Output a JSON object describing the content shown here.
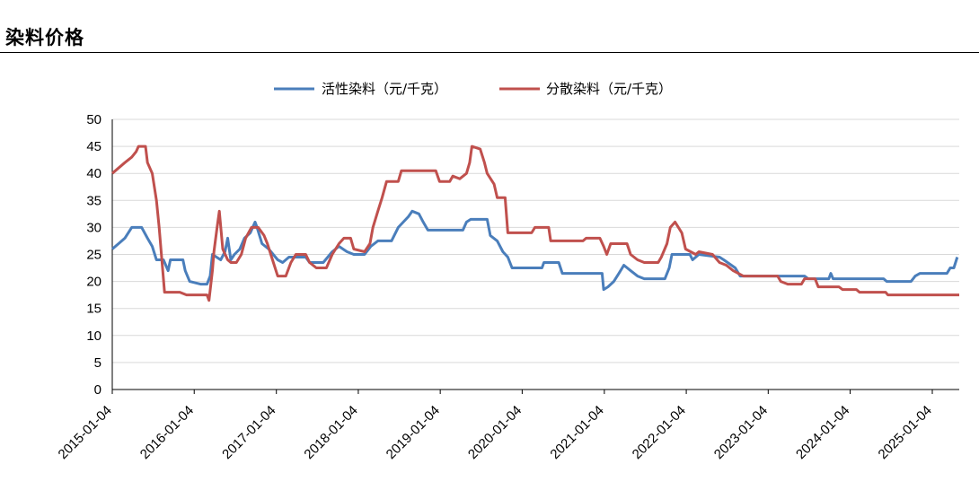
{
  "page": {
    "title": "染料价格"
  },
  "chart_data": {
    "type": "line",
    "title": "",
    "xlabel": "",
    "ylabel": "",
    "x_range": [
      "2015-01-04",
      "2025-05-04"
    ],
    "ylim": [
      0,
      50
    ],
    "y_ticks": [
      "0",
      "5",
      "10",
      "15",
      "20",
      "25",
      "30",
      "35",
      "40",
      "45",
      "50"
    ],
    "x_ticks": [
      "2015-01-04",
      "2016-01-04",
      "2017-01-04",
      "2018-01-04",
      "2019-01-04",
      "2020-01-04",
      "2021-01-04",
      "2022-01-04",
      "2023-01-04",
      "2024-01-04",
      "2025-01-04"
    ],
    "grid": "horizontal",
    "legend_position": "top",
    "series": [
      {
        "name": "活性染料（元/千克）",
        "color": "#4a7ebb",
        "points": [
          [
            "2015-01-04",
            26
          ],
          [
            "2015-02-01",
            27
          ],
          [
            "2015-03-01",
            28
          ],
          [
            "2015-04-01",
            30
          ],
          [
            "2015-05-15",
            30
          ],
          [
            "2015-06-10",
            28
          ],
          [
            "2015-07-01",
            26.5
          ],
          [
            "2015-07-20",
            24
          ],
          [
            "2015-08-20",
            24
          ],
          [
            "2015-09-10",
            22
          ],
          [
            "2015-09-20",
            24
          ],
          [
            "2015-11-15",
            24
          ],
          [
            "2015-11-25",
            22
          ],
          [
            "2015-12-15",
            20
          ],
          [
            "2016-02-01",
            19.5
          ],
          [
            "2016-03-01",
            19.5
          ],
          [
            "2016-03-15",
            21
          ],
          [
            "2016-03-25",
            25
          ],
          [
            "2016-05-01",
            24
          ],
          [
            "2016-05-20",
            25.5
          ],
          [
            "2016-06-01",
            28
          ],
          [
            "2016-06-15",
            24
          ],
          [
            "2016-07-01",
            25
          ],
          [
            "2016-07-25",
            26
          ],
          [
            "2016-08-15",
            28
          ],
          [
            "2016-09-10",
            29
          ],
          [
            "2016-10-01",
            31
          ],
          [
            "2016-10-10",
            30
          ],
          [
            "2016-11-01",
            27
          ],
          [
            "2016-12-01",
            26
          ],
          [
            "2017-01-10",
            24
          ],
          [
            "2017-02-01",
            23.5
          ],
          [
            "2017-03-01",
            24.5
          ],
          [
            "2017-04-15",
            24.5
          ],
          [
            "2017-05-15",
            24.5
          ],
          [
            "2017-06-01",
            23.5
          ],
          [
            "2017-08-01",
            23.5
          ],
          [
            "2017-09-10",
            25.5
          ],
          [
            "2017-10-10",
            26.5
          ],
          [
            "2017-11-15",
            25.5
          ],
          [
            "2017-12-15",
            25
          ],
          [
            "2018-02-01",
            25
          ],
          [
            "2018-03-01",
            26.5
          ],
          [
            "2018-04-01",
            27.5
          ],
          [
            "2018-06-01",
            27.5
          ],
          [
            "2018-07-01",
            30
          ],
          [
            "2018-08-15",
            32
          ],
          [
            "2018-09-01",
            33
          ],
          [
            "2018-10-01",
            32.5
          ],
          [
            "2018-10-20",
            31
          ],
          [
            "2018-11-10",
            29.5
          ],
          [
            "2019-03-01",
            29.5
          ],
          [
            "2019-04-15",
            29.5
          ],
          [
            "2019-05-01",
            31
          ],
          [
            "2019-05-20",
            31.5
          ],
          [
            "2019-08-01",
            31.5
          ],
          [
            "2019-08-15",
            28.5
          ],
          [
            "2019-09-15",
            27.5
          ],
          [
            "2019-10-10",
            25.5
          ],
          [
            "2019-11-01",
            24.5
          ],
          [
            "2019-11-20",
            22.5
          ],
          [
            "2020-04-01",
            22.5
          ],
          [
            "2020-04-10",
            23.5
          ],
          [
            "2020-06-15",
            23.5
          ],
          [
            "2020-07-01",
            21.5
          ],
          [
            "2020-12-25",
            21.5
          ],
          [
            "2021-01-01",
            18.5
          ],
          [
            "2021-01-20",
            19
          ],
          [
            "2021-02-15",
            20
          ],
          [
            "2021-03-10",
            21.5
          ],
          [
            "2021-04-01",
            23
          ],
          [
            "2021-05-01",
            22
          ],
          [
            "2021-06-01",
            21
          ],
          [
            "2021-07-01",
            20.5
          ],
          [
            "2021-10-01",
            20.5
          ],
          [
            "2021-10-20",
            22.5
          ],
          [
            "2021-11-01",
            25
          ],
          [
            "2022-01-20",
            25
          ],
          [
            "2022-02-01",
            24
          ],
          [
            "2022-03-01",
            25
          ],
          [
            "2022-06-01",
            24.5
          ],
          [
            "2022-06-20",
            24
          ],
          [
            "2022-08-10",
            22.5
          ],
          [
            "2022-09-01",
            21
          ],
          [
            "2023-06-15",
            21
          ],
          [
            "2023-07-01",
            20.5
          ],
          [
            "2023-10-01",
            20.5
          ],
          [
            "2023-10-10",
            21.5
          ],
          [
            "2023-10-20",
            20.5
          ],
          [
            "2024-06-01",
            20.5
          ],
          [
            "2024-06-15",
            20
          ],
          [
            "2024-10-01",
            20
          ],
          [
            "2024-10-20",
            21
          ],
          [
            "2024-11-10",
            21.5
          ],
          [
            "2025-03-10",
            21.5
          ],
          [
            "2025-03-25",
            22.5
          ],
          [
            "2025-04-10",
            22.5
          ],
          [
            "2025-04-25",
            24.5
          ]
        ]
      },
      {
        "name": "分散染料（元/千克）",
        "color": "#c0504d",
        "points": [
          [
            "2015-01-04",
            40
          ],
          [
            "2015-02-01",
            41
          ],
          [
            "2015-03-01",
            42
          ],
          [
            "2015-04-01",
            43
          ],
          [
            "2015-04-20",
            44
          ],
          [
            "2015-05-01",
            45
          ],
          [
            "2015-06-01",
            45
          ],
          [
            "2015-06-10",
            42
          ],
          [
            "2015-07-01",
            40
          ],
          [
            "2015-07-20",
            35
          ],
          [
            "2015-08-01",
            30
          ],
          [
            "2015-08-15",
            23
          ],
          [
            "2015-08-25",
            18
          ],
          [
            "2015-11-01",
            18
          ],
          [
            "2015-12-01",
            17.5
          ],
          [
            "2016-03-01",
            17.5
          ],
          [
            "2016-03-10",
            16.5
          ],
          [
            "2016-03-25",
            22
          ],
          [
            "2016-04-01",
            25.5
          ],
          [
            "2016-04-15",
            30
          ],
          [
            "2016-04-25",
            33
          ],
          [
            "2016-05-10",
            26
          ],
          [
            "2016-06-01",
            24
          ],
          [
            "2016-06-15",
            23.5
          ],
          [
            "2016-07-10",
            23.5
          ],
          [
            "2016-08-01",
            25
          ],
          [
            "2016-08-20",
            28
          ],
          [
            "2016-09-15",
            30
          ],
          [
            "2016-10-15",
            30
          ],
          [
            "2016-11-10",
            28.5
          ],
          [
            "2016-11-25",
            27
          ],
          [
            "2016-12-10",
            25
          ],
          [
            "2017-01-10",
            21
          ],
          [
            "2017-02-15",
            21
          ],
          [
            "2017-03-10",
            23.5
          ],
          [
            "2017-04-01",
            25
          ],
          [
            "2017-05-15",
            25
          ],
          [
            "2017-06-01",
            23.5
          ],
          [
            "2017-07-01",
            22.5
          ],
          [
            "2017-08-15",
            22.5
          ],
          [
            "2017-09-10",
            25
          ],
          [
            "2017-10-10",
            27
          ],
          [
            "2017-11-01",
            28
          ],
          [
            "2017-12-01",
            28
          ],
          [
            "2017-12-15",
            26
          ],
          [
            "2018-02-01",
            25.5
          ],
          [
            "2018-02-25",
            27
          ],
          [
            "2018-03-10",
            30
          ],
          [
            "2018-04-01",
            33
          ],
          [
            "2018-04-20",
            35.5
          ],
          [
            "2018-05-10",
            38.5
          ],
          [
            "2018-07-01",
            38.5
          ],
          [
            "2018-07-15",
            40.5
          ],
          [
            "2018-12-15",
            40.5
          ],
          [
            "2019-01-01",
            38.5
          ],
          [
            "2019-02-15",
            38.5
          ],
          [
            "2019-03-01",
            39.5
          ],
          [
            "2019-04-01",
            39
          ],
          [
            "2019-05-01",
            40
          ],
          [
            "2019-05-15",
            42
          ],
          [
            "2019-05-25",
            45
          ],
          [
            "2019-07-01",
            44.5
          ],
          [
            "2019-07-20",
            42
          ],
          [
            "2019-08-01",
            40
          ],
          [
            "2019-09-01",
            38
          ],
          [
            "2019-09-15",
            35.5
          ],
          [
            "2019-10-20",
            35.5
          ],
          [
            "2019-11-01",
            29
          ],
          [
            "2020-02-15",
            29
          ],
          [
            "2020-03-01",
            30
          ],
          [
            "2020-05-01",
            30
          ],
          [
            "2020-05-10",
            27.5
          ],
          [
            "2020-10-01",
            27.5
          ],
          [
            "2020-10-15",
            28
          ],
          [
            "2020-12-15",
            28
          ],
          [
            "2021-01-01",
            26.5
          ],
          [
            "2021-01-15",
            25
          ],
          [
            "2021-02-01",
            27
          ],
          [
            "2021-04-15",
            27
          ],
          [
            "2021-05-01",
            25
          ],
          [
            "2021-06-01",
            24
          ],
          [
            "2021-07-01",
            23.5
          ],
          [
            "2021-09-01",
            23.5
          ],
          [
            "2021-09-15",
            24.5
          ],
          [
            "2021-10-10",
            27
          ],
          [
            "2021-10-25",
            30
          ],
          [
            "2021-11-15",
            31
          ],
          [
            "2021-12-15",
            29
          ],
          [
            "2022-01-01",
            26
          ],
          [
            "2022-02-15",
            25
          ],
          [
            "2022-03-01",
            25.5
          ],
          [
            "2022-05-01",
            25
          ],
          [
            "2022-06-01",
            23.5
          ],
          [
            "2022-07-01",
            23
          ],
          [
            "2022-08-01",
            22
          ],
          [
            "2022-09-15",
            21
          ],
          [
            "2023-02-15",
            21
          ],
          [
            "2023-03-01",
            20
          ],
          [
            "2023-04-01",
            19.5
          ],
          [
            "2023-06-01",
            19.5
          ],
          [
            "2023-06-15",
            20.5
          ],
          [
            "2023-08-01",
            20.5
          ],
          [
            "2023-08-15",
            19
          ],
          [
            "2023-11-15",
            19
          ],
          [
            "2023-12-01",
            18.5
          ],
          [
            "2024-02-01",
            18.5
          ],
          [
            "2024-02-15",
            18
          ],
          [
            "2024-06-10",
            18
          ],
          [
            "2024-06-20",
            17.5
          ],
          [
            "2025-05-04",
            17.5
          ]
        ]
      }
    ]
  }
}
